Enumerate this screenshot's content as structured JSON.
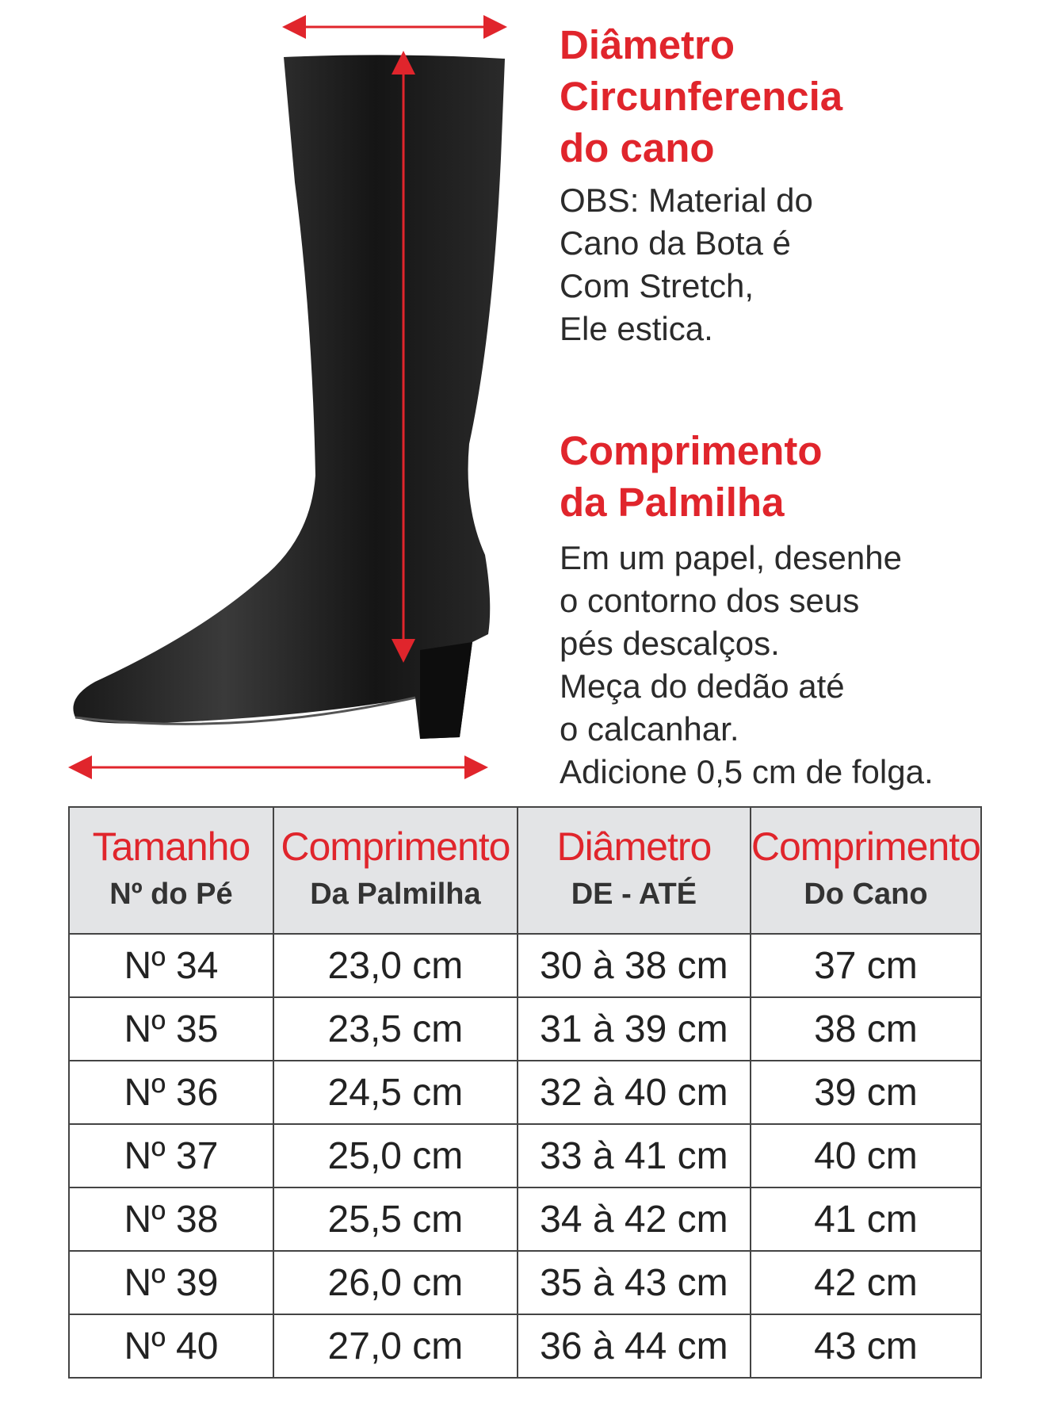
{
  "colors": {
    "accent": "#e0252c",
    "header_bg": "#e3e4e6",
    "text": "#2b2b2b"
  },
  "section1": {
    "title_lines": [
      "Diâmetro",
      "Circunferencia",
      "do cano"
    ],
    "body_lines": [
      "OBS: Material do",
      "Cano da Bota é",
      "Com Stretch,",
      "Ele estica."
    ]
  },
  "section2": {
    "title_lines": [
      "Comprimento",
      "da Palmilha"
    ],
    "body_lines": [
      "Em um papel, desenhe",
      "o contorno dos seus",
      "pés descalços.",
      "Meça do dedão até",
      "o calcanhar.",
      "Adicione 0,5 cm de folga."
    ]
  },
  "table": {
    "headers": [
      {
        "top": "Tamanho",
        "bottom": "Nº do Pé"
      },
      {
        "top": "Comprimento",
        "bottom": "Da Palmilha"
      },
      {
        "top": "Diâmetro",
        "bottom": "DE - ATÉ"
      },
      {
        "top": "Comprimento",
        "bottom": "Do Cano"
      }
    ],
    "rows": [
      [
        "Nº 34",
        "23,0 cm",
        "30 à 38 cm",
        "37 cm"
      ],
      [
        "Nº 35",
        "23,5 cm",
        "31 à 39 cm",
        "38 cm"
      ],
      [
        "Nº 36",
        "24,5 cm",
        "32 à 40 cm",
        "39 cm"
      ],
      [
        "Nº 37",
        "25,0 cm",
        "33 à 41 cm",
        "40 cm"
      ],
      [
        "Nº 38",
        "25,5 cm",
        "34 à 42 cm",
        "41 cm"
      ],
      [
        "Nº 39",
        "26,0 cm",
        "35 à 43 cm",
        "42 cm"
      ],
      [
        "Nº 40",
        "27,0 cm",
        "36 à 44 cm",
        "43 cm"
      ]
    ]
  }
}
